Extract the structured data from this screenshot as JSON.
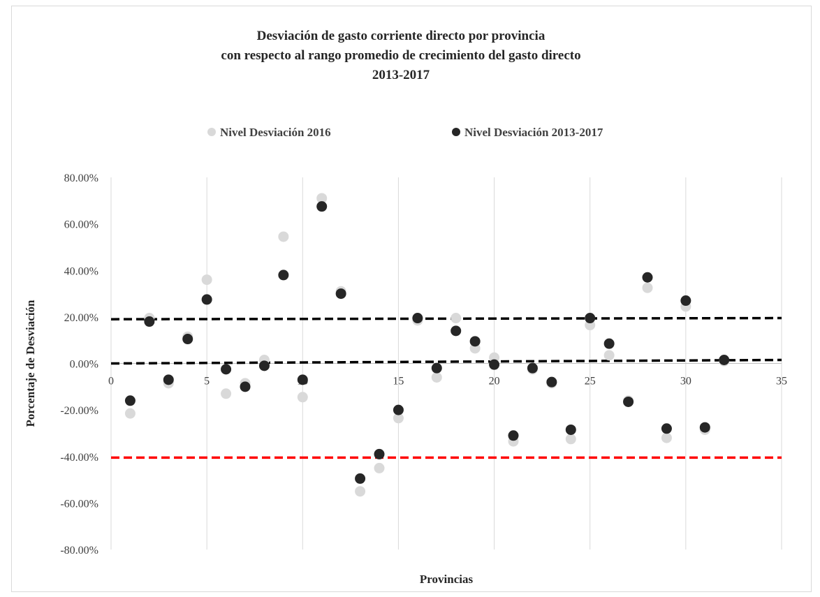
{
  "chart_data": {
    "type": "scatter",
    "title": [
      "Desviación de gasto corriente directo por provincia",
      "con respecto al rango promedio de crecimiento del gasto directo",
      "2013-2017"
    ],
    "xlabel": "Provincias",
    "ylabel": "Porcentaje de Desviación",
    "xlim": [
      0,
      35
    ],
    "ylim": [
      -80,
      80
    ],
    "x_ticks": [
      0,
      5,
      10,
      15,
      20,
      25,
      30,
      35
    ],
    "y_ticks": [
      80,
      60,
      40,
      20,
      0,
      -20,
      -40,
      -60,
      -80
    ],
    "y_tick_labels": [
      "80.00%",
      "60.00%",
      "40.00%",
      "20.00%",
      "0.00%",
      "-20.00%",
      "-40.00%",
      "-60.00%",
      "-80.00%"
    ],
    "grid": "vertical",
    "legend_position": "top",
    "series": [
      {
        "name": "Nivel Desviación 2016",
        "color": "#d9d9d9",
        "x": [
          1,
          2,
          3,
          4,
          5,
          6,
          7,
          8,
          9,
          10,
          11,
          12,
          13,
          14,
          15,
          16,
          17,
          18,
          19,
          20,
          21,
          22,
          23,
          24,
          25,
          26,
          27,
          28,
          29,
          30,
          31,
          32
        ],
        "y": [
          -21.5,
          19.5,
          -8.5,
          11.5,
          36,
          -13,
          -8.5,
          1.5,
          54.5,
          -14.5,
          71,
          31,
          -55,
          -45,
          -23.5,
          18.5,
          -6,
          19.5,
          6.5,
          2.5,
          -33.5,
          -2.5,
          -8.5,
          -32.5,
          16.5,
          3.5,
          -16,
          32.5,
          -32,
          24.5,
          -28.5,
          1
        ]
      },
      {
        "name": "Nivel Desviación 2013-2017",
        "color": "#262626",
        "x": [
          1,
          2,
          3,
          4,
          5,
          6,
          7,
          8,
          9,
          10,
          11,
          12,
          13,
          14,
          15,
          16,
          17,
          18,
          19,
          20,
          21,
          22,
          23,
          24,
          25,
          26,
          27,
          28,
          29,
          30,
          31,
          32
        ],
        "y": [
          -16,
          18,
          -7,
          10.5,
          27.5,
          -2.5,
          -10,
          -1,
          38,
          -7,
          67.5,
          30,
          -49.5,
          -39,
          -20,
          19.5,
          -2,
          14,
          9.5,
          -0.5,
          -31,
          -2,
          -8,
          -28.5,
          19.5,
          8.5,
          -16.5,
          37,
          -28,
          27,
          -27.5,
          1.5
        ]
      }
    ],
    "reference_lines": [
      {
        "color": "#000000",
        "from": [
          0,
          19
        ],
        "to": [
          35,
          19.5
        ]
      },
      {
        "color": "#000000",
        "from": [
          0,
          0
        ],
        "to": [
          35,
          1.5
        ]
      },
      {
        "color": "#ff0000",
        "from": [
          0,
          -40.5
        ],
        "to": [
          35,
          -40.5
        ]
      }
    ]
  }
}
